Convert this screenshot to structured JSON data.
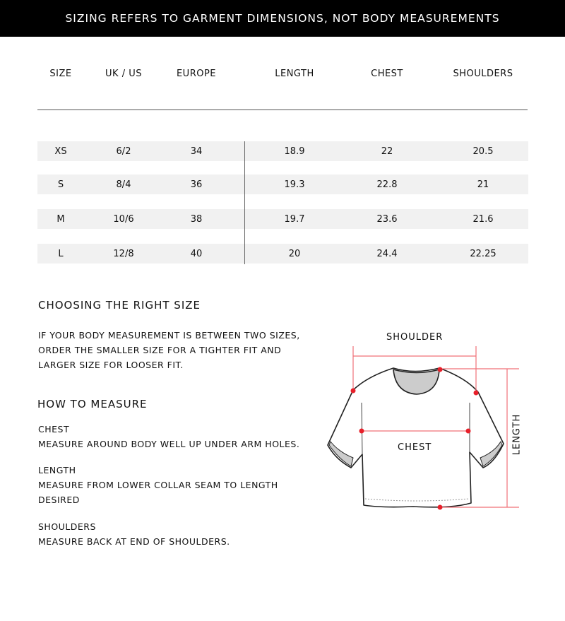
{
  "banner": "SIZING REFERS TO GARMENT DIMENSIONS, NOT BODY MEASUREMENTS",
  "table": {
    "headers": [
      "SIZE",
      "UK / US",
      "EUROPE",
      "LENGTH",
      "CHEST",
      "SHOULDERS"
    ],
    "rows": [
      [
        "XS",
        "6/2",
        "34",
        "18.9",
        "22",
        "20.5"
      ],
      [
        "S",
        "8/4",
        "36",
        "19.3",
        "22.8",
        "21"
      ],
      [
        "M",
        "10/6",
        "38",
        "19.7",
        "23.6",
        "21.6"
      ],
      [
        "L",
        "12/8",
        "40",
        "20",
        "24.4",
        "22.25"
      ]
    ]
  },
  "choosing": {
    "title": "CHOOSING THE RIGHT SIZE",
    "lines": [
      "IF YOUR BODY MEASUREMENT IS BETWEEN TWO SIZES,",
      "ORDER THE SMALLER SIZE FOR A TIGHTER FIT AND",
      "LARGER SIZE FOR LOOSER FIT."
    ]
  },
  "measure": {
    "title": "HOW TO MEASURE",
    "items": [
      {
        "label": "CHEST",
        "lines": [
          "MEASURE AROUND BODY WELL UP UNDER ARM HOLES."
        ]
      },
      {
        "label": "LENGTH",
        "lines": [
          "MEASURE FROM LOWER COLLAR SEAM TO LENGTH",
          "DESIRED"
        ]
      },
      {
        "label": "SHOULDERS",
        "lines": [
          "MEASURE BACK AT END OF SHOULDERS."
        ]
      }
    ]
  },
  "diagram": {
    "shoulder": "SHOULDER",
    "chest": "CHEST",
    "length": "LENGTH",
    "accent": "#e8202a"
  }
}
